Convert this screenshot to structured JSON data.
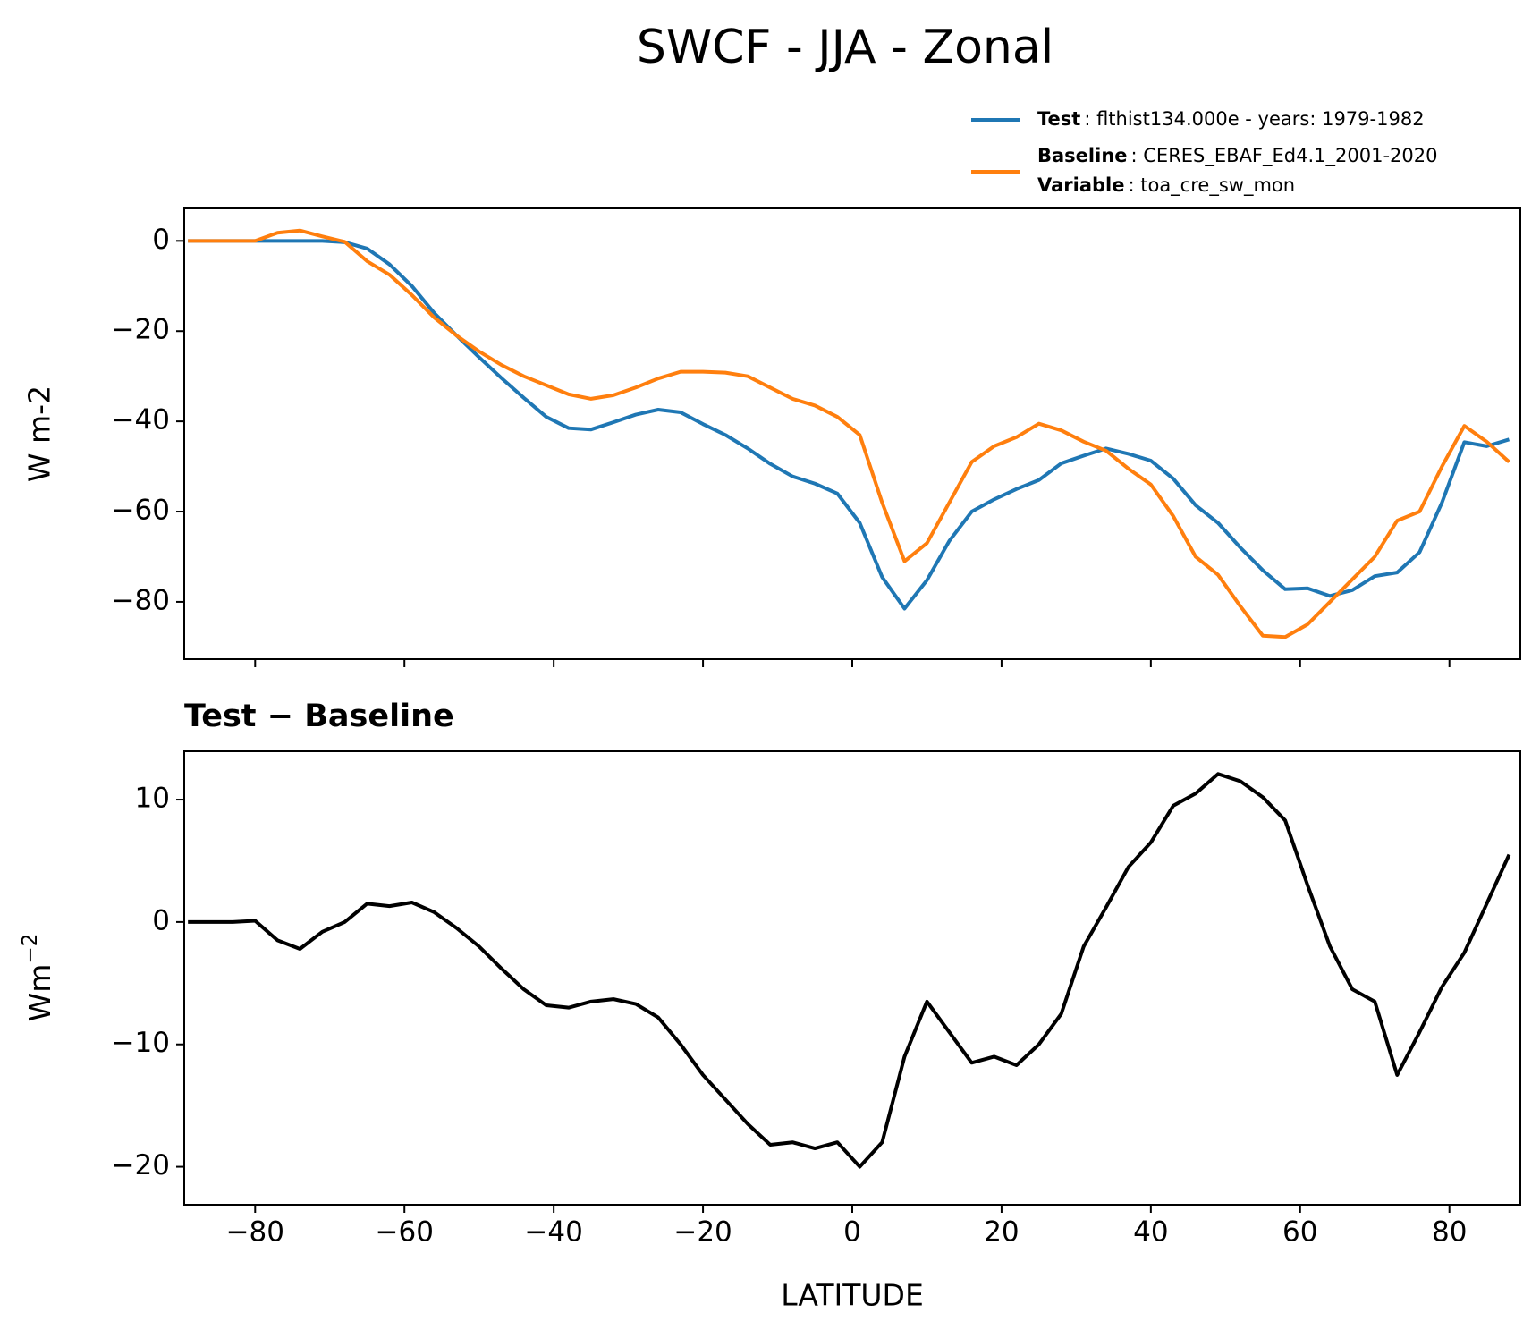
{
  "chart_data": [
    {
      "type": "line",
      "title": "SWCF - JJA - Zonal",
      "ylabel": "W m-2",
      "x": [
        -89,
        -86,
        -83,
        -80,
        -77,
        -74,
        -71,
        -68,
        -65,
        -62,
        -59,
        -56,
        -53,
        -50,
        -47,
        -44,
        -41,
        -38,
        -35,
        -32,
        -29,
        -26,
        -23,
        -20,
        -17,
        -14,
        -11,
        -8,
        -5,
        -2,
        1,
        4,
        7,
        10,
        13,
        16,
        19,
        22,
        25,
        28,
        31,
        34,
        37,
        40,
        43,
        46,
        49,
        52,
        55,
        58,
        61,
        64,
        67,
        70,
        73,
        76,
        79,
        82,
        85,
        88
      ],
      "series": [
        {
          "name": "Test",
          "description": ": flthist134.000e - years: 1979-1982",
          "color": "#1f77b4",
          "values": [
            0,
            0,
            0,
            0,
            0,
            0,
            0,
            -0.3,
            -1.7,
            -5.2,
            -10,
            -16,
            -21,
            -25.8,
            -30.4,
            -34.8,
            -39,
            -41.5,
            -41.8,
            -40.2,
            -38.5,
            -37.4,
            -38,
            -40.6,
            -43,
            -46,
            -49.4,
            -52.2,
            -53.8,
            -56,
            -62.5,
            -74.5,
            -81.5,
            -75.2,
            -66.5,
            -60,
            -57.3,
            -55,
            -53,
            -49.3,
            -47.6,
            -46,
            -47.2,
            -48.7,
            -52.7,
            -58.6,
            -62.5,
            -68,
            -73,
            -77.2,
            -77,
            -78.7,
            -77.4,
            -74.3,
            -73.5,
            -69,
            -58,
            -44.6,
            -45.5,
            -44
          ]
        },
        {
          "name": "Baseline",
          "description": ": CERES_EBAF_Ed4.1_2001-2020",
          "color": "#ff7f0e",
          "values": [
            0,
            0,
            0,
            0,
            1.8,
            2.3,
            1.0,
            -0.2,
            -4.5,
            -7.5,
            -12,
            -17,
            -21,
            -24.5,
            -27.5,
            -30,
            -32,
            -34,
            -35,
            -34.2,
            -32.5,
            -30.5,
            -29,
            -29,
            -29.2,
            -30,
            -32.5,
            -35,
            -36.5,
            -39,
            -43,
            -58,
            -71,
            -67,
            -58,
            -49,
            -45.5,
            -43.5,
            -40.5,
            -42,
            -44.5,
            -46.5,
            -50.5,
            -54,
            -61,
            -70,
            -74,
            -81,
            -87.5,
            -87.8,
            -85,
            -80,
            -75,
            -70,
            -62,
            -60,
            -50,
            -41,
            -44.5,
            -49
          ]
        }
      ],
      "legend_extra": {
        "name": "Variable",
        "description": ": toa_cre_sw_mon"
      },
      "xlim": [
        -89.5,
        89.5
      ],
      "xticks": [
        -80,
        -60,
        -40,
        -20,
        0,
        20,
        40,
        60,
        80
      ],
      "ylim": [
        -92.7,
        7.2
      ],
      "yticks": [
        {
          "value": 0,
          "label": "0"
        },
        {
          "value": -20,
          "label": "−20"
        },
        {
          "value": -40,
          "label": "−40"
        },
        {
          "value": -60,
          "label": "−60"
        },
        {
          "value": -80,
          "label": "−80"
        }
      ]
    },
    {
      "type": "line",
      "title": "Test − Baseline",
      "ylabel": "Wm",
      "ylabel_sup": "−2",
      "xlabel": "LATITUDE",
      "x": [
        -89,
        -86,
        -83,
        -80,
        -77,
        -74,
        -71,
        -68,
        -65,
        -62,
        -59,
        -56,
        -53,
        -50,
        -47,
        -44,
        -41,
        -38,
        -35,
        -32,
        -29,
        -26,
        -23,
        -20,
        -17,
        -14,
        -11,
        -8,
        -5,
        -2,
        1,
        4,
        7,
        10,
        13,
        16,
        19,
        22,
        25,
        28,
        31,
        34,
        37,
        40,
        43,
        46,
        49,
        52,
        55,
        58,
        61,
        64,
        67,
        70,
        73,
        76,
        79,
        82,
        85,
        88
      ],
      "series": [
        {
          "color": "#000000",
          "values": [
            0,
            0,
            0,
            0.1,
            -1.5,
            -2.2,
            -0.8,
            0,
            1.5,
            1.3,
            1.6,
            0.8,
            -0.5,
            -2,
            -3.8,
            -5.5,
            -6.8,
            -7,
            -6.5,
            -6.3,
            -6.7,
            -7.8,
            -10,
            -12.5,
            -14.5,
            -16.5,
            -18.2,
            -18,
            -18.5,
            -18,
            -20,
            -18,
            -11,
            -6.5,
            -9,
            -11.5,
            -11,
            -11.7,
            -10,
            -7.5,
            -2,
            1.2,
            4.5,
            6.5,
            9.5,
            10.5,
            12.1,
            11.5,
            10.2,
            8.3,
            3,
            -2,
            -5.5,
            -6.5,
            -12.5,
            -9,
            -5.3,
            -2.5,
            1.5,
            5.5
          ]
        }
      ],
      "xlim": [
        -89.5,
        89.5
      ],
      "xticks": [
        {
          "value": -80,
          "label": "−80"
        },
        {
          "value": -60,
          "label": "−60"
        },
        {
          "value": -40,
          "label": "−40"
        },
        {
          "value": -20,
          "label": "−20"
        },
        {
          "value": 0,
          "label": "0"
        },
        {
          "value": 20,
          "label": "20"
        },
        {
          "value": 40,
          "label": "40"
        },
        {
          "value": 60,
          "label": "60"
        },
        {
          "value": 80,
          "label": "80"
        }
      ],
      "ylim": [
        -23.1,
        13.95
      ],
      "yticks": [
        {
          "value": 10,
          "label": "10"
        },
        {
          "value": 0,
          "label": "0"
        },
        {
          "value": -10,
          "label": "−10"
        },
        {
          "value": -20,
          "label": "−20"
        }
      ]
    }
  ]
}
